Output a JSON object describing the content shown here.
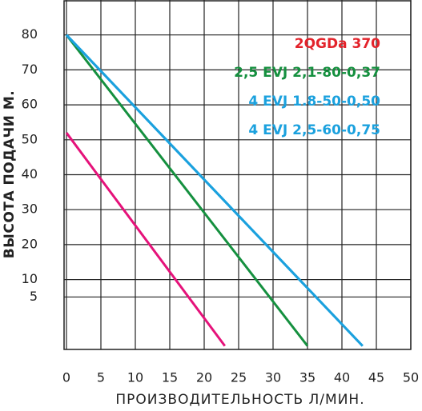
{
  "chart_data": {
    "type": "line",
    "xlabel": "ПРОИЗВОДИТЕЛЬНОСТЬ Л/МИН.",
    "ylabel": "ВЫСОТА ПОДАЧИ М.",
    "xlim": [
      0,
      50
    ],
    "xticks": [
      0,
      5,
      10,
      15,
      20,
      25,
      30,
      35,
      40,
      45,
      50
    ],
    "ylim": [
      -10,
      90
    ],
    "yticks": [
      5,
      10,
      20,
      30,
      40,
      50,
      60,
      70,
      80
    ],
    "grid": true,
    "legend": "upper right",
    "series": [
      {
        "name": "2QGDa 370",
        "color": "#e5127a",
        "label_color": "#e3232b",
        "x": [
          0,
          23
        ],
        "values": [
          52,
          -9
        ]
      },
      {
        "name": "2,5 EVJ 2,1-80-0,37",
        "color": "#15903f",
        "x": [
          0,
          35
        ],
        "values": [
          80,
          -9
        ]
      },
      {
        "name": "4 EVJ 1.8-50-0,50",
        "color": "#1ba1de",
        "x": [
          0,
          43
        ],
        "values": [
          80,
          -9
        ]
      },
      {
        "name": "4 EVJ 2,5-60-0,75",
        "color": "#1ba1de",
        "x": [
          0,
          43
        ],
        "values": [
          80,
          -9
        ]
      }
    ]
  }
}
